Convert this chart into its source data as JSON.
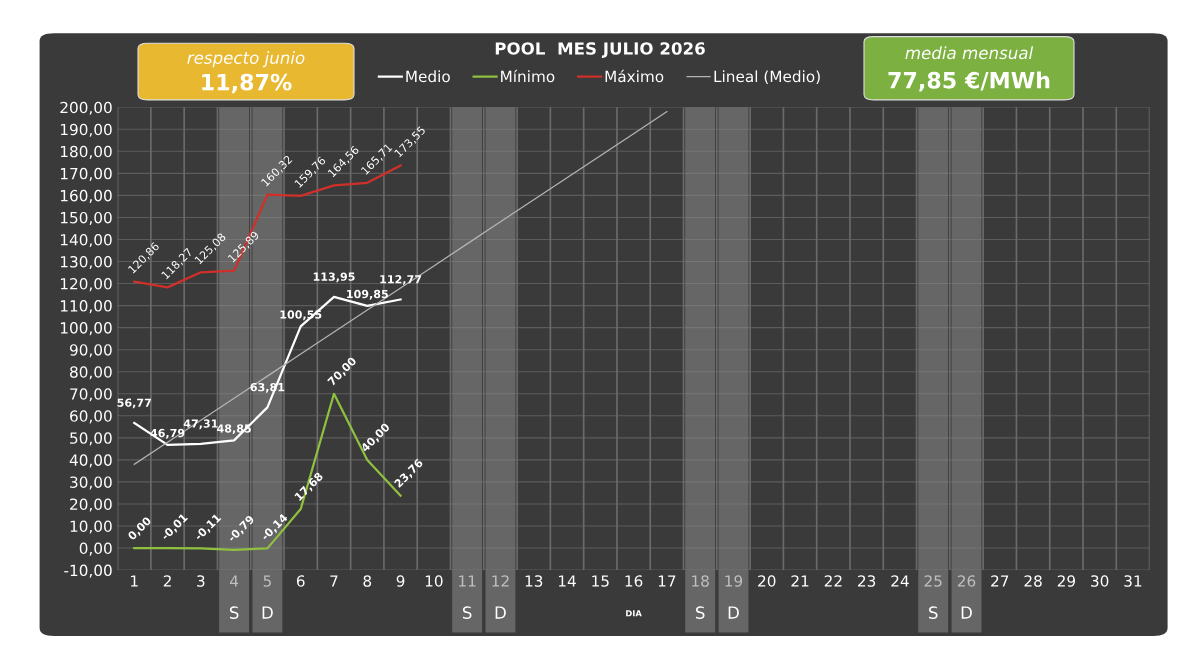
{
  "chart_data": {
    "type": "line",
    "title": "POOL  MES JULIO 2026",
    "xlabel": "DIA",
    "categories": [
      "1",
      "2",
      "3",
      "4",
      "5",
      "6",
      "7",
      "8",
      "9",
      "10",
      "11",
      "12",
      "13",
      "14",
      "15",
      "16",
      "17",
      "18",
      "19",
      "20",
      "21",
      "22",
      "23",
      "24",
      "25",
      "26",
      "27",
      "28",
      "29",
      "30",
      "31"
    ],
    "series": [
      {
        "name": "Medio",
        "color": "#ffffff",
        "values": [
          56.77,
          46.79,
          47.31,
          48.85,
          63.81,
          100.55,
          113.95,
          109.85,
          112.77,
          null,
          null,
          null,
          null,
          null,
          null,
          null,
          null,
          null,
          null,
          null,
          null,
          null,
          null,
          null,
          null,
          null,
          null,
          null,
          null,
          null,
          null
        ],
        "value_labels": [
          "56,77",
          "46,79",
          "47,31",
          "48,85",
          "63,81",
          "100,55",
          "113,95",
          "109,85",
          "112,77",
          null,
          null,
          null,
          null,
          null,
          null,
          null,
          null,
          null,
          null,
          null,
          null,
          null,
          null,
          null,
          null,
          null,
          null,
          null,
          null,
          null,
          null
        ]
      },
      {
        "name": "Mínimo",
        "color": "#8fc040",
        "values": [
          0.0,
          -0.01,
          -0.11,
          -0.79,
          -0.14,
          17.68,
          70.0,
          40.0,
          23.76,
          null,
          null,
          null,
          null,
          null,
          null,
          null,
          null,
          null,
          null,
          null,
          null,
          null,
          null,
          null,
          null,
          null,
          null,
          null,
          null,
          null,
          null
        ],
        "value_labels": [
          "0,00",
          "-0,01",
          "-0,11",
          "-0,79",
          "-0,14",
          "17,68",
          "70,00",
          "40,00",
          "23,76",
          null,
          null,
          null,
          null,
          null,
          null,
          null,
          null,
          null,
          null,
          null,
          null,
          null,
          null,
          null,
          null,
          null,
          null,
          null,
          null,
          null,
          null
        ]
      },
      {
        "name": "Máximo",
        "color": "#d0302a",
        "values": [
          120.86,
          118.27,
          125.08,
          125.89,
          160.32,
          159.76,
          164.56,
          165.71,
          173.55,
          null,
          null,
          null,
          null,
          null,
          null,
          null,
          null,
          null,
          null,
          null,
          null,
          null,
          null,
          null,
          null,
          null,
          null,
          null,
          null,
          null,
          null
        ],
        "value_labels": [
          "120,86",
          "118,27",
          "125,08",
          "125,89",
          "160,32",
          "159,76",
          "164,56",
          "165,71",
          "173,55",
          null,
          null,
          null,
          null,
          null,
          null,
          null,
          null,
          null,
          null,
          null,
          null,
          null,
          null,
          null,
          null,
          null,
          null,
          null,
          null,
          null,
          null
        ]
      },
      {
        "name": "Lineal (Medio)",
        "color": "#b4b4b4",
        "values": [
          38,
          48,
          58,
          68,
          78,
          88,
          98,
          108,
          118,
          128,
          138,
          148,
          158,
          168,
          178,
          188,
          198,
          null,
          null,
          null,
          null,
          null,
          null,
          null,
          null,
          null,
          null,
          null,
          null,
          null,
          null
        ]
      }
    ],
    "ylim": [
      -10,
      200
    ],
    "yticks": [
      {
        "value": -10,
        "label": "-10,00"
      },
      {
        "value": 0,
        "label": "0,00"
      },
      {
        "value": 10,
        "label": "10,00"
      },
      {
        "value": 20,
        "label": "20,00"
      },
      {
        "value": 30,
        "label": "30,00"
      },
      {
        "value": 40,
        "label": "40,00"
      },
      {
        "value": 50,
        "label": "50,00"
      },
      {
        "value": 60,
        "label": "60,00"
      },
      {
        "value": 70,
        "label": "70,00"
      },
      {
        "value": 80,
        "label": "80,00"
      },
      {
        "value": 90,
        "label": "90,00"
      },
      {
        "value": 100,
        "label": "100,00"
      },
      {
        "value": 110,
        "label": "110,00"
      },
      {
        "value": 120,
        "label": "120,00"
      },
      {
        "value": 130,
        "label": "130,00"
      },
      {
        "value": 140,
        "label": "140,00"
      },
      {
        "value": 150,
        "label": "150,00"
      },
      {
        "value": 160,
        "label": "160,00"
      },
      {
        "value": 170,
        "label": "170,00"
      },
      {
        "value": 180,
        "label": "180,00"
      },
      {
        "value": 190,
        "label": "190,00"
      },
      {
        "value": 200,
        "label": "200,00"
      }
    ],
    "bands": [
      {
        "axis": "x",
        "from": "4",
        "to": "4",
        "label": "S",
        "color": "#8a8a8a"
      },
      {
        "axis": "x",
        "from": "5",
        "to": "5",
        "label": "D",
        "color": "#8a8a8a"
      },
      {
        "axis": "x",
        "from": "11",
        "to": "11",
        "label": "S",
        "color": "#8a8a8a"
      },
      {
        "axis": "x",
        "from": "12",
        "to": "12",
        "label": "D",
        "color": "#8a8a8a"
      },
      {
        "axis": "x",
        "from": "18",
        "to": "18",
        "label": "S",
        "color": "#8a8a8a"
      },
      {
        "axis": "x",
        "from": "19",
        "to": "19",
        "label": "D",
        "color": "#8a8a8a"
      },
      {
        "axis": "x",
        "from": "25",
        "to": "25",
        "label": "S",
        "color": "#8a8a8a"
      },
      {
        "axis": "x",
        "from": "26",
        "to": "26",
        "label": "D",
        "color": "#8a8a8a"
      }
    ],
    "annotations": [
      "respecto junio",
      "11,87%",
      "media mensual",
      "77,85 €/MWh"
    ],
    "grid": true,
    "legend": "top",
    "marker": "none",
    "line_style": "solid"
  }
}
